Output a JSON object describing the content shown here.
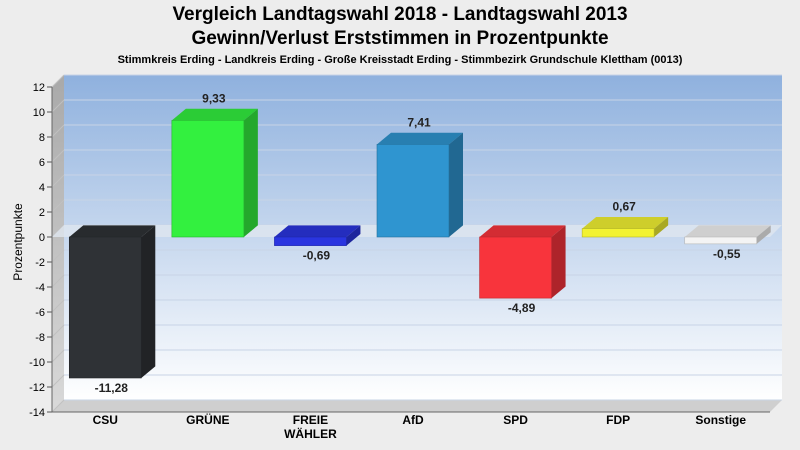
{
  "header": {
    "title_line1": "Vergleich Landtagswahl 2018 - Landtagswahl 2013",
    "title_line2": "Gewinn/Verlust Erststimmen in Prozentpunkte",
    "subtitle": "Stimmkreis Erding - Landkreis Erding - Große Kreisstadt Erding - Stimmbezirk Grundschule Klettham (0013)"
  },
  "chart_data": {
    "type": "bar",
    "title": "Vergleich Landtagswahl 2018 - Landtagswahl 2013",
    "subtitle": "Gewinn/Verlust Erststimmen in Prozentpunkte",
    "ylabel": "Prozentpunkte",
    "xlabel": "",
    "ylim": [
      -14,
      12
    ],
    "yticks": [
      12,
      10,
      8,
      6,
      4,
      2,
      0,
      -2,
      -4,
      -6,
      -8,
      -10,
      -12,
      -14
    ],
    "grid": true,
    "categories": [
      "CSU",
      "GRÜNE",
      "FREIE WÄHLER",
      "AfD",
      "SPD",
      "FDP",
      "Sonstige"
    ],
    "category_label_lines": [
      [
        "CSU"
      ],
      [
        "GRÜNE"
      ],
      [
        "FREIE",
        "WÄHLER"
      ],
      [
        "AfD"
      ],
      [
        "SPD"
      ],
      [
        "FDP"
      ],
      [
        "Sonstige"
      ]
    ],
    "values": [
      -11.28,
      9.33,
      -0.69,
      7.41,
      -4.89,
      0.67,
      -0.55
    ],
    "value_labels": [
      "-11,28",
      "9,33",
      "-0,69",
      "7,41",
      "-4,89",
      "0,67",
      "-0,55"
    ],
    "colors": [
      "#2f3236",
      "#33f03f",
      "#2a35e0",
      "#2f95d0",
      "#f8343c",
      "#f2f232",
      "#f4f4f4"
    ]
  }
}
